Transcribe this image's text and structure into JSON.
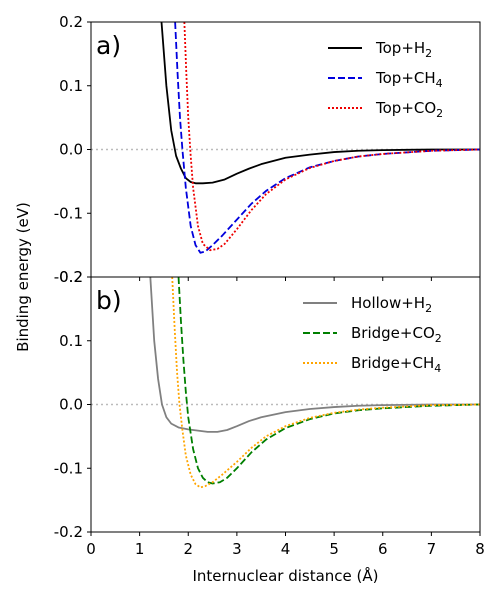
{
  "chart_data": [
    {
      "panel_label": "a)",
      "type": "line",
      "xlim": [
        0,
        8
      ],
      "ylim": [
        -0.2,
        0.2
      ],
      "yticks": [
        "0.2",
        "0.1",
        "0.0",
        "-0.1",
        "-0.2"
      ],
      "legend_position": "top-right",
      "reference_line": {
        "y": 0.0,
        "style": "dotted",
        "color": "#bbbbbb"
      },
      "series": [
        {
          "name": "Top+H₂",
          "name_base": "Top+H",
          "name_sub": "2",
          "color": "#000000",
          "style": "solid",
          "x": [
            1.45,
            1.55,
            1.65,
            1.75,
            1.85,
            1.95,
            2.05,
            2.15,
            2.3,
            2.5,
            2.75,
            3.0,
            3.25,
            3.5,
            4.0,
            4.5,
            5.0,
            5.5,
            6.0,
            6.5,
            7.0,
            8.0
          ],
          "y": [
            0.2,
            0.1,
            0.03,
            -0.01,
            -0.03,
            -0.045,
            -0.051,
            -0.053,
            -0.053,
            -0.052,
            -0.047,
            -0.038,
            -0.03,
            -0.023,
            -0.013,
            -0.008,
            -0.004,
            -0.002,
            -0.001,
            -0.0005,
            0.0,
            0.0
          ]
        },
        {
          "name": "Top+CH₄",
          "name_base": "Top+CH",
          "name_sub": "4",
          "color": "#0000dd",
          "style": "dashed",
          "x": [
            1.73,
            1.78,
            1.83,
            1.88,
            1.95,
            2.05,
            2.15,
            2.25,
            2.35,
            2.5,
            2.7,
            3.0,
            3.3,
            3.6,
            4.0,
            4.5,
            5.0,
            5.5,
            6.0,
            7.0,
            8.0
          ],
          "y": [
            0.2,
            0.12,
            0.05,
            0.0,
            -0.06,
            -0.12,
            -0.15,
            -0.162,
            -0.16,
            -0.15,
            -0.135,
            -0.11,
            -0.085,
            -0.065,
            -0.045,
            -0.028,
            -0.018,
            -0.011,
            -0.007,
            -0.002,
            0.0
          ]
        },
        {
          "name": "Top+CO₂",
          "name_base": "Top+CO",
          "name_sub": "2",
          "color": "#ee0000",
          "style": "dotted",
          "x": [
            1.92,
            1.96,
            2.0,
            2.05,
            2.1,
            2.2,
            2.3,
            2.45,
            2.6,
            2.75,
            3.0,
            3.3,
            3.6,
            4.0,
            4.5,
            5.0,
            5.5,
            6.0,
            7.0,
            8.0
          ],
          "y": [
            0.2,
            0.12,
            0.05,
            -0.01,
            -0.06,
            -0.12,
            -0.148,
            -0.158,
            -0.156,
            -0.148,
            -0.125,
            -0.095,
            -0.07,
            -0.047,
            -0.029,
            -0.018,
            -0.011,
            -0.007,
            -0.002,
            0.0
          ]
        }
      ]
    },
    {
      "panel_label": "b)",
      "type": "line",
      "xlim": [
        0,
        8
      ],
      "ylim": [
        -0.2,
        0.2
      ],
      "yticks": [
        "0.2",
        "0.1",
        "0.0",
        "-0.1",
        "-0.2"
      ],
      "xticks": [
        "0",
        "1",
        "2",
        "3",
        "4",
        "5",
        "6",
        "7",
        "8"
      ],
      "xlabel": "Internuclear distance (Å)",
      "legend_position": "top-right",
      "reference_line": {
        "y": 0.0,
        "style": "dotted",
        "color": "#bbbbbb"
      },
      "series": [
        {
          "name": "Hollow+H₂",
          "name_base": "Hollow+H",
          "name_sub": "2",
          "color": "#808080",
          "style": "solid",
          "x": [
            1.22,
            1.3,
            1.38,
            1.46,
            1.55,
            1.65,
            1.8,
            2.0,
            2.2,
            2.4,
            2.6,
            2.8,
            3.0,
            3.25,
            3.5,
            4.0,
            4.5,
            5.0,
            5.5,
            6.0,
            7.0,
            8.0
          ],
          "y": [
            0.2,
            0.1,
            0.04,
            0.0,
            -0.02,
            -0.03,
            -0.036,
            -0.039,
            -0.041,
            -0.043,
            -0.043,
            -0.04,
            -0.034,
            -0.026,
            -0.02,
            -0.012,
            -0.007,
            -0.004,
            -0.002,
            -0.001,
            0.0,
            0.0
          ]
        },
        {
          "name": "Bridge+CO₂",
          "name_base": "Bridge+CO",
          "name_sub": "2",
          "color": "#007f00",
          "style": "dashed",
          "x": [
            1.8,
            1.85,
            1.9,
            1.95,
            2.0,
            2.1,
            2.2,
            2.3,
            2.4,
            2.5,
            2.65,
            2.8,
            3.0,
            3.3,
            3.6,
            4.0,
            4.5,
            5.0,
            5.5,
            6.0,
            7.0,
            8.0
          ],
          "y": [
            0.2,
            0.13,
            0.07,
            0.02,
            -0.02,
            -0.07,
            -0.1,
            -0.115,
            -0.122,
            -0.124,
            -0.122,
            -0.115,
            -0.1,
            -0.075,
            -0.055,
            -0.037,
            -0.023,
            -0.014,
            -0.009,
            -0.006,
            -0.002,
            0.0
          ]
        },
        {
          "name": "Bridge+CH₄",
          "name_base": "Bridge+CH",
          "name_sub": "4",
          "color": "#ffa500",
          "style": "dotted",
          "x": [
            1.67,
            1.72,
            1.77,
            1.82,
            1.88,
            1.95,
            2.05,
            2.15,
            2.25,
            2.35,
            2.5,
            2.7,
            3.0,
            3.3,
            3.6,
            4.0,
            4.5,
            5.0,
            5.5,
            6.0,
            7.0,
            8.0
          ],
          "y": [
            0.2,
            0.12,
            0.05,
            0.0,
            -0.04,
            -0.08,
            -0.11,
            -0.125,
            -0.13,
            -0.128,
            -0.122,
            -0.11,
            -0.09,
            -0.068,
            -0.05,
            -0.034,
            -0.021,
            -0.013,
            -0.008,
            -0.005,
            -0.001,
            0.0
          ]
        }
      ]
    }
  ],
  "shared_ylabel": "Binding energy (eV)"
}
